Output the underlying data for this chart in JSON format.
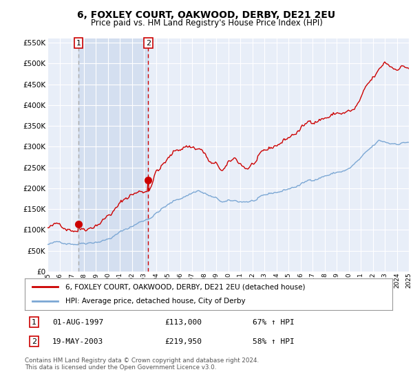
{
  "title": "6, FOXLEY COURT, OAKWOOD, DERBY, DE21 2EU",
  "subtitle": "Price paid vs. HM Land Registry's House Price Index (HPI)",
  "transaction1_price": 113000,
  "transaction1_label": "01-AUG-1997",
  "transaction1_pct": "67% ↑ HPI",
  "transaction2_price": 219950,
  "transaction2_label": "19-MAY-2003",
  "transaction2_pct": "58% ↑ HPI",
  "legend_line1": "6, FOXLEY COURT, OAKWOOD, DERBY, DE21 2EU (detached house)",
  "legend_line2": "HPI: Average price, detached house, City of Derby",
  "footer": "Contains HM Land Registry data © Crown copyright and database right 2024.\nThis data is licensed under the Open Government Licence v3.0.",
  "ylim": [
    0,
    560000
  ],
  "yticks": [
    0,
    50000,
    100000,
    150000,
    200000,
    250000,
    300000,
    350000,
    400000,
    450000,
    500000,
    550000
  ],
  "plot_bg_color": "#e8eef8",
  "grid_color": "#ffffff",
  "red_line_color": "#cc0000",
  "blue_line_color": "#7ba7d4",
  "vline1_color": "#aaaaaa",
  "vline2_color": "#cc0000",
  "marker_color": "#cc0000",
  "span_color": "#ccd9ee",
  "transaction1_x": 1997.58,
  "transaction2_x": 2003.37,
  "start_year": 1995,
  "end_year": 2025
}
